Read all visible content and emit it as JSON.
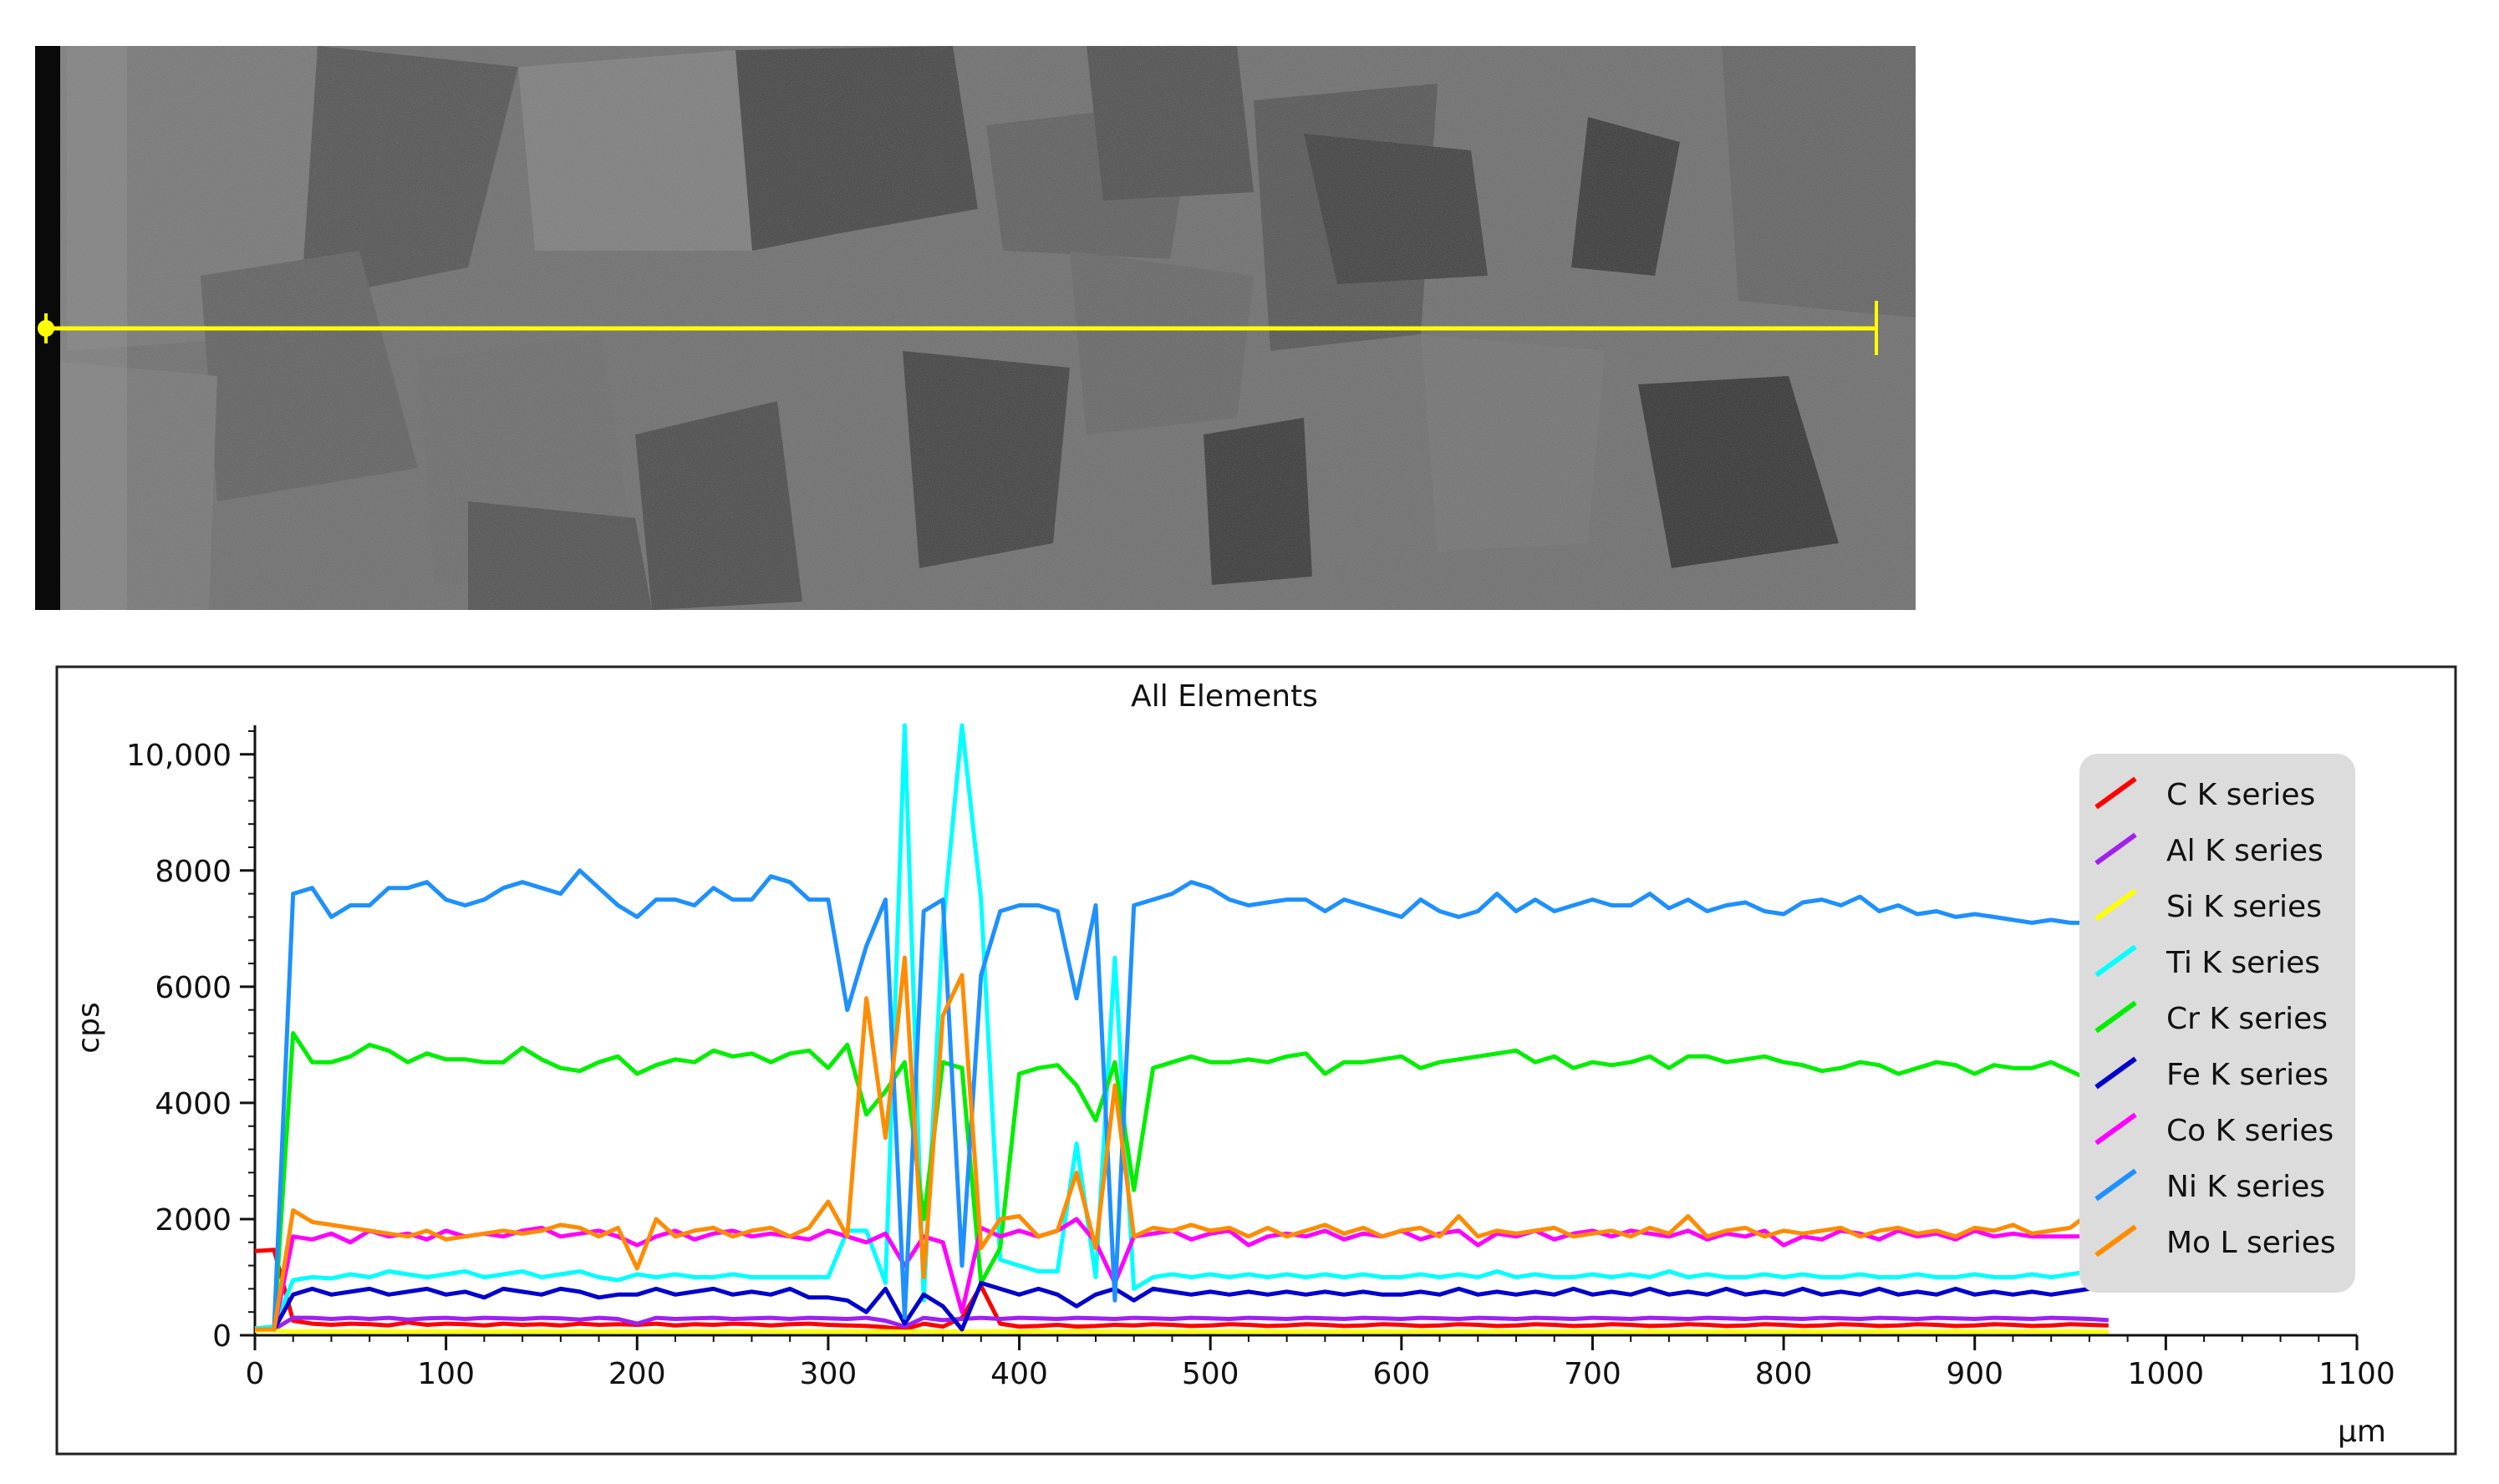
{
  "chart_data": {
    "type": "line",
    "title": "All Elements",
    "xlabel": "µm",
    "ylabel": "cps",
    "xlim": [
      0,
      1100
    ],
    "ylim": [
      0,
      10500
    ],
    "xticks": [
      "0",
      "100",
      "200",
      "300",
      "400",
      "500",
      "600",
      "700",
      "800",
      "900",
      "1000",
      "1100"
    ],
    "yticks": [
      "0",
      "2000",
      "4000",
      "6000",
      "8000",
      "10,000"
    ],
    "x": [
      0,
      10,
      20,
      30,
      40,
      50,
      60,
      70,
      80,
      90,
      100,
      110,
      120,
      130,
      140,
      150,
      160,
      170,
      180,
      190,
      200,
      210,
      220,
      230,
      240,
      250,
      260,
      270,
      280,
      290,
      300,
      310,
      320,
      330,
      340,
      350,
      360,
      370,
      380,
      390,
      400,
      410,
      420,
      430,
      440,
      450,
      460,
      470,
      480,
      490,
      500,
      510,
      520,
      530,
      540,
      550,
      560,
      570,
      580,
      590,
      600,
      610,
      620,
      630,
      640,
      650,
      660,
      670,
      680,
      690,
      700,
      710,
      720,
      730,
      740,
      750,
      760,
      770,
      780,
      790,
      800,
      810,
      820,
      830,
      840,
      850,
      860,
      870,
      880,
      890,
      900,
      910,
      920,
      930,
      940,
      950,
      960,
      970
    ],
    "series": [
      {
        "name": "C K series",
        "color": "#ff0000",
        "values": [
          1450,
          1470,
          250,
          200,
          180,
          200,
          190,
          170,
          220,
          180,
          200,
          190,
          170,
          200,
          180,
          190,
          170,
          200,
          180,
          190,
          180,
          200,
          170,
          190,
          180,
          200,
          190,
          170,
          190,
          200,
          180,
          170,
          160,
          140,
          100,
          200,
          150,
          300,
          850,
          200,
          150,
          160,
          180,
          150,
          160,
          180,
          170,
          190,
          180,
          160,
          170,
          190,
          180,
          160,
          170,
          190,
          180,
          160,
          170,
          190,
          180,
          160,
          170,
          190,
          180,
          160,
          170,
          190,
          180,
          160,
          170,
          190,
          180,
          160,
          170,
          190,
          180,
          160,
          170,
          190,
          180,
          160,
          170,
          190,
          180,
          160,
          170,
          190,
          180,
          160,
          170,
          190,
          180,
          160,
          170,
          190,
          180,
          170
        ]
      },
      {
        "name": "Al K series",
        "color": "#a020f0",
        "values": [
          120,
          100,
          300,
          300,
          280,
          300,
          280,
          300,
          270,
          290,
          300,
          280,
          300,
          290,
          280,
          300,
          290,
          270,
          300,
          280,
          200,
          300,
          280,
          290,
          300,
          280,
          290,
          300,
          280,
          300,
          290,
          280,
          300,
          250,
          150,
          300,
          260,
          280,
          300,
          280,
          300,
          290,
          280,
          300,
          290,
          280,
          300,
          290,
          280,
          300,
          290,
          280,
          300,
          290,
          280,
          300,
          290,
          280,
          300,
          290,
          280,
          300,
          290,
          280,
          300,
          290,
          280,
          300,
          290,
          280,
          300,
          290,
          280,
          300,
          290,
          280,
          300,
          290,
          280,
          300,
          290,
          280,
          300,
          290,
          280,
          300,
          290,
          280,
          300,
          290,
          280,
          300,
          290,
          280,
          300,
          290,
          280,
          260
        ]
      },
      {
        "name": "Si K series",
        "color": "#ffff00",
        "values": [
          80,
          80,
          60,
          70,
          60,
          70,
          60,
          70,
          60,
          70,
          60,
          70,
          60,
          70,
          60,
          70,
          60,
          70,
          60,
          70,
          60,
          70,
          60,
          70,
          60,
          70,
          60,
          70,
          60,
          70,
          60,
          70,
          60,
          70,
          60,
          70,
          60,
          70,
          60,
          70,
          60,
          70,
          60,
          70,
          60,
          70,
          60,
          70,
          60,
          70,
          60,
          70,
          60,
          70,
          60,
          70,
          60,
          70,
          60,
          70,
          60,
          70,
          60,
          70,
          60,
          70,
          60,
          70,
          60,
          70,
          60,
          70,
          60,
          70,
          60,
          70,
          60,
          70,
          60,
          70,
          60,
          70,
          60,
          70,
          60,
          70,
          60,
          70,
          60,
          70,
          60,
          70,
          60,
          70,
          60,
          70,
          60,
          60
        ]
      },
      {
        "name": "Ti K series",
        "color": "#00ffff",
        "values": [
          120,
          150,
          950,
          1000,
          980,
          1050,
          1000,
          1100,
          1050,
          1000,
          1050,
          1100,
          1000,
          1050,
          1100,
          1000,
          1050,
          1100,
          1000,
          950,
          1050,
          1000,
          1050,
          1000,
          1000,
          1050,
          1000,
          1000,
          1000,
          1000,
          1000,
          1800,
          1800,
          900,
          10500,
          600,
          7000,
          10500,
          7500,
          1300,
          1200,
          1100,
          1100,
          3300,
          1000,
          6500,
          800,
          1000,
          1050,
          1000,
          1050,
          1000,
          1050,
          1000,
          1050,
          1000,
          1050,
          1000,
          1050,
          1000,
          1000,
          1050,
          1000,
          1050,
          1000,
          1100,
          1000,
          1050,
          1000,
          1000,
          1050,
          1000,
          1050,
          1000,
          1100,
          1000,
          1050,
          1000,
          1000,
          1050,
          1000,
          1050,
          1000,
          1000,
          1050,
          1000,
          1000,
          1050,
          1000,
          1000,
          1050,
          1000,
          1000,
          1050,
          1000,
          1050,
          1100,
          1100
        ]
      },
      {
        "name": "Cr K series",
        "color": "#00ee00",
        "values": [
          100,
          100,
          5200,
          4700,
          4700,
          4800,
          5000,
          4900,
          4700,
          4850,
          4750,
          4750,
          4700,
          4700,
          4950,
          4750,
          4600,
          4550,
          4700,
          4800,
          4500,
          4650,
          4750,
          4700,
          4900,
          4800,
          4850,
          4700,
          4850,
          4900,
          4600,
          5000,
          3800,
          4200,
          4700,
          2000,
          4700,
          4600,
          900,
          1500,
          4500,
          4600,
          4650,
          4300,
          3700,
          4700,
          2500,
          4600,
          4700,
          4800,
          4700,
          4700,
          4750,
          4700,
          4800,
          4850,
          4500,
          4700,
          4700,
          4750,
          4800,
          4600,
          4700,
          4750,
          4800,
          4850,
          4900,
          4700,
          4800,
          4600,
          4700,
          4650,
          4700,
          4800,
          4600,
          4800,
          4800,
          4700,
          4750,
          4800,
          4700,
          4650,
          4550,
          4600,
          4700,
          4650,
          4500,
          4600,
          4700,
          4650,
          4500,
          4650,
          4600,
          4600,
          4700,
          4550,
          4400,
          4550
        ]
      },
      {
        "name": "Fe K series",
        "color": "#0000cd",
        "values": [
          100,
          100,
          700,
          800,
          700,
          750,
          800,
          700,
          750,
          800,
          700,
          750,
          650,
          800,
          750,
          700,
          800,
          750,
          650,
          700,
          700,
          800,
          700,
          750,
          800,
          700,
          750,
          700,
          800,
          650,
          650,
          600,
          400,
          800,
          200,
          700,
          500,
          100,
          900,
          800,
          700,
          800,
          700,
          500,
          700,
          800,
          600,
          800,
          750,
          700,
          750,
          700,
          750,
          700,
          750,
          700,
          750,
          700,
          750,
          700,
          700,
          750,
          700,
          800,
          700,
          750,
          700,
          750,
          700,
          800,
          700,
          750,
          700,
          800,
          700,
          750,
          700,
          800,
          700,
          750,
          700,
          800,
          700,
          750,
          700,
          800,
          700,
          750,
          700,
          800,
          700,
          750,
          700,
          750,
          700,
          750,
          800,
          800
        ]
      },
      {
        "name": "Co K series",
        "color": "#ff00ff",
        "values": [
          100,
          100,
          1700,
          1650,
          1750,
          1600,
          1800,
          1700,
          1750,
          1650,
          1800,
          1700,
          1750,
          1700,
          1800,
          1850,
          1700,
          1750,
          1800,
          1700,
          1550,
          1700,
          1800,
          1650,
          1750,
          1800,
          1700,
          1750,
          1700,
          1650,
          1800,
          1700,
          1600,
          1750,
          1200,
          1700,
          1600,
          400,
          1850,
          1700,
          1800,
          1700,
          1800,
          2000,
          1600,
          900,
          1700,
          1750,
          1800,
          1650,
          1750,
          1800,
          1550,
          1700,
          1750,
          1700,
          1800,
          1650,
          1750,
          1700,
          1800,
          1650,
          1750,
          1800,
          1550,
          1750,
          1700,
          1800,
          1650,
          1750,
          1800,
          1700,
          1800,
          1750,
          1700,
          1800,
          1650,
          1750,
          1700,
          1800,
          1550,
          1700,
          1650,
          1800,
          1750,
          1650,
          1800,
          1700,
          1750,
          1650,
          1800,
          1700,
          1750,
          1700,
          1700,
          1700,
          1700,
          1700
        ]
      },
      {
        "name": "Ni K series",
        "color": "#1e90ff",
        "values": [
          100,
          100,
          7600,
          7700,
          7200,
          7400,
          7400,
          7700,
          7700,
          7800,
          7500,
          7400,
          7500,
          7700,
          7800,
          7700,
          7600,
          8000,
          7700,
          7400,
          7200,
          7500,
          7500,
          7400,
          7700,
          7500,
          7500,
          7900,
          7800,
          7500,
          7500,
          5600,
          6700,
          7500,
          300,
          7300,
          7500,
          1200,
          6200,
          7300,
          7400,
          7400,
          7300,
          5800,
          7400,
          600,
          7400,
          7500,
          7600,
          7800,
          7700,
          7500,
          7400,
          7450,
          7500,
          7500,
          7300,
          7500,
          7400,
          7300,
          7200,
          7500,
          7300,
          7200,
          7300,
          7600,
          7300,
          7500,
          7300,
          7400,
          7500,
          7400,
          7400,
          7600,
          7350,
          7500,
          7300,
          7400,
          7450,
          7300,
          7250,
          7450,
          7500,
          7400,
          7550,
          7300,
          7400,
          7250,
          7300,
          7200,
          7250,
          7200,
          7150,
          7100,
          7150,
          7100,
          7100,
          7000
        ]
      },
      {
        "name": "Mo L series",
        "color": "#ff8c00",
        "values": [
          100,
          100,
          2150,
          1950,
          1900,
          1850,
          1800,
          1750,
          1700,
          1800,
          1650,
          1700,
          1750,
          1800,
          1750,
          1800,
          1900,
          1850,
          1700,
          1850,
          1150,
          2000,
          1700,
          1800,
          1850,
          1700,
          1800,
          1850,
          1700,
          1850,
          2300,
          1700,
          5800,
          3400,
          6500,
          1000,
          5500,
          6200,
          1500,
          2000,
          2050,
          1700,
          1800,
          2800,
          1500,
          4300,
          1700,
          1850,
          1800,
          1900,
          1800,
          1850,
          1700,
          1850,
          1700,
          1800,
          1900,
          1750,
          1850,
          1700,
          1800,
          1850,
          1700,
          2050,
          1700,
          1800,
          1750,
          1800,
          1850,
          1700,
          1750,
          1800,
          1700,
          1850,
          1750,
          2050,
          1700,
          1800,
          1850,
          1700,
          1800,
          1750,
          1800,
          1850,
          1700,
          1800,
          1850,
          1750,
          1800,
          1700,
          1850,
          1800,
          1900,
          1750,
          1800,
          1850,
          2100,
          1900
        ]
      }
    ]
  }
}
